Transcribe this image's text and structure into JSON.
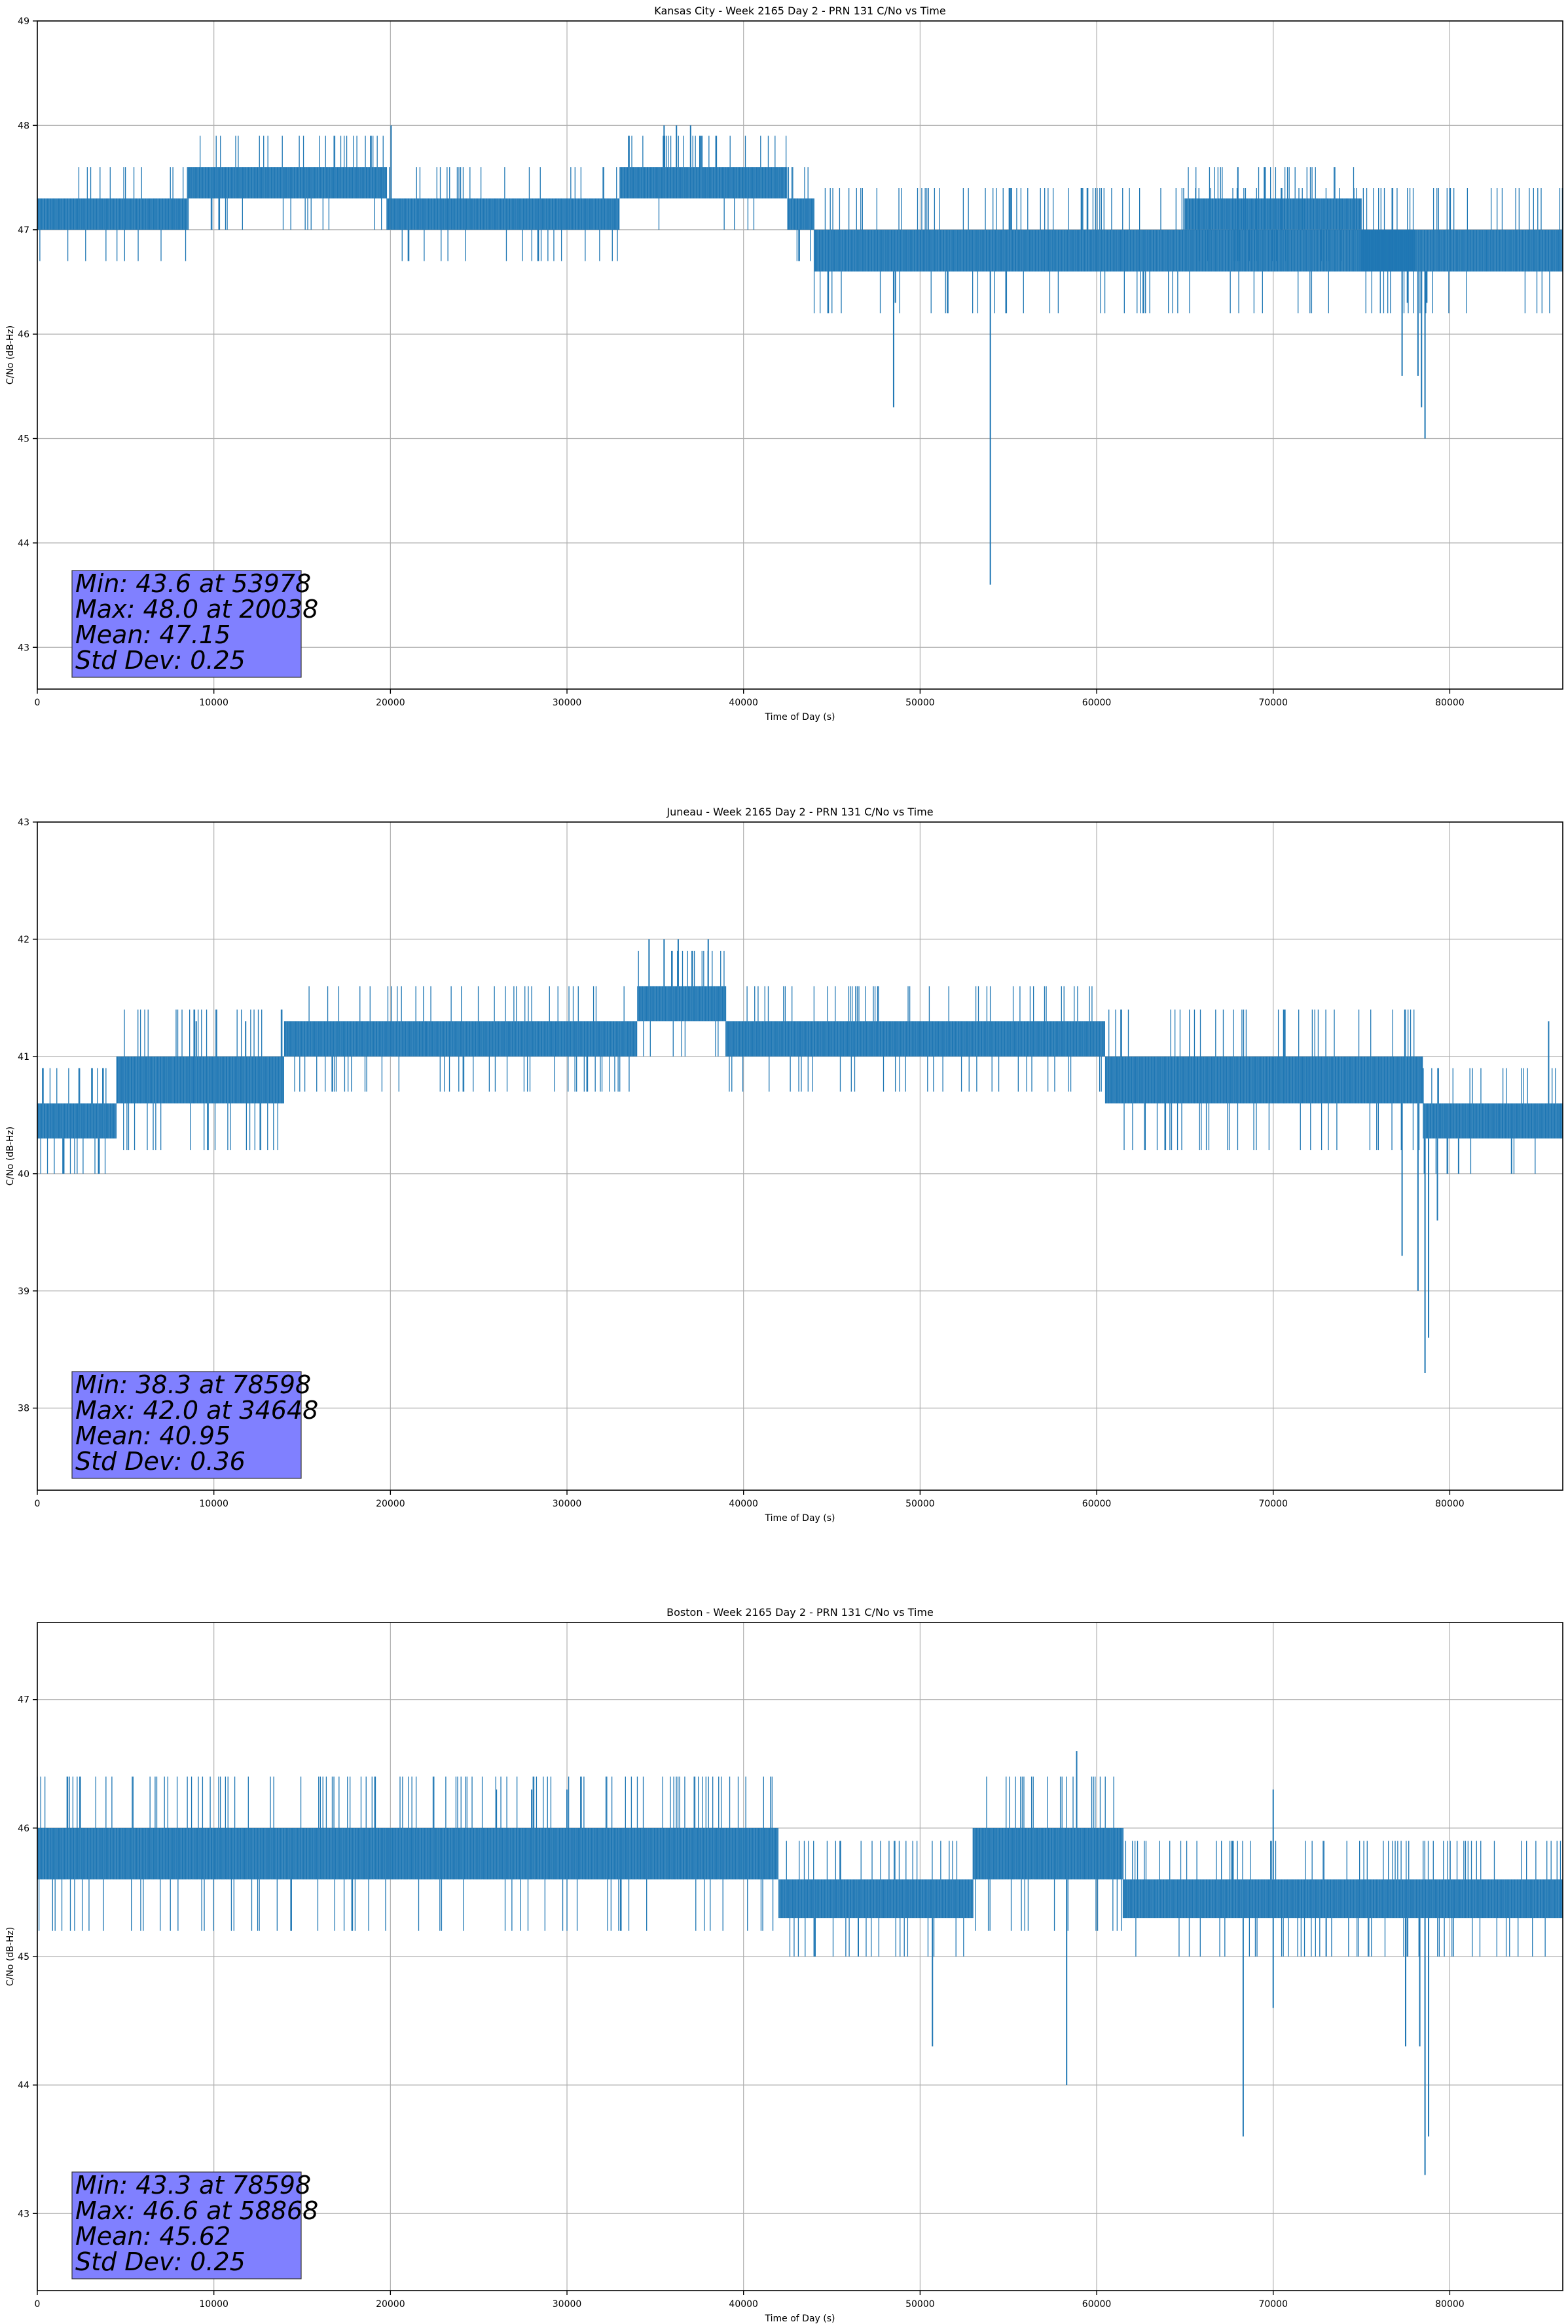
{
  "chart_data": [
    {
      "type": "line",
      "title": "Kansas City - Week 2165 Day 2 - PRN 131 C/No vs Time",
      "xlabel": "Time of Day (s)",
      "ylabel": "C/No (dB-Hz)",
      "xlim": [
        0,
        86400
      ],
      "ylim": [
        42.6,
        49.0
      ],
      "xticks": [
        0,
        10000,
        20000,
        30000,
        40000,
        50000,
        60000,
        70000,
        80000
      ],
      "yticks": [
        43,
        44,
        45,
        46,
        47,
        48,
        49
      ],
      "grid": true,
      "line_color": "#1f77b4",
      "stats_box_color": "#8080ff",
      "stats": [
        "Min: 43.6 at 53978",
        "Max: 48.0 at 20038",
        "Mean: 47.15",
        "Std Dev: 0.25"
      ],
      "bands": [
        {
          "x": [
            0,
            8500
          ],
          "range": [
            47.0,
            47.3
          ]
        },
        {
          "x": [
            8500,
            19800
          ],
          "range": [
            47.3,
            47.6
          ]
        },
        {
          "x": [
            19800,
            27000
          ],
          "range": [
            47.0,
            47.3
          ]
        },
        {
          "x": [
            27000,
            33000
          ],
          "range": [
            47.0,
            47.3
          ]
        },
        {
          "x": [
            33000,
            42500
          ],
          "range": [
            47.3,
            47.6
          ]
        },
        {
          "x": [
            42500,
            44000
          ],
          "range": [
            47.0,
            47.3
          ]
        },
        {
          "x": [
            44000,
            78000
          ],
          "range": [
            46.6,
            47.0
          ]
        },
        {
          "x": [
            65000,
            75000
          ],
          "range": [
            47.0,
            47.3
          ]
        },
        {
          "x": [
            75000,
            86400
          ],
          "range": [
            46.6,
            47.0
          ]
        }
      ],
      "spikes": [
        [
          20038,
          48.0
        ],
        [
          35500,
          48.0
        ],
        [
          36200,
          48.0
        ],
        [
          37000,
          48.0
        ],
        [
          68000,
          47.6
        ],
        [
          69500,
          47.6
        ],
        [
          48500,
          45.3
        ],
        [
          48600,
          46.3
        ],
        [
          53978,
          43.6
        ],
        [
          55000,
          46.6
        ],
        [
          77300,
          45.6
        ],
        [
          77600,
          46.3
        ],
        [
          78200,
          45.6
        ],
        [
          78400,
          45.3
        ],
        [
          78598,
          45.0
        ],
        [
          78700,
          46.3
        ]
      ]
    },
    {
      "type": "line",
      "title": "Juneau - Week 2165 Day 2 - PRN 131 C/No vs Time",
      "xlabel": "Time of Day (s)",
      "ylabel": "C/No (dB-Hz)",
      "xlim": [
        0,
        86400
      ],
      "ylim": [
        37.3,
        43.0
      ],
      "xticks": [
        0,
        10000,
        20000,
        30000,
        40000,
        50000,
        60000,
        70000,
        80000
      ],
      "yticks": [
        38,
        39,
        40,
        41,
        42,
        43
      ],
      "grid": true,
      "line_color": "#1f77b4",
      "stats_box_color": "#8080ff",
      "stats": [
        "Min: 38.3 at 78598",
        "Max: 42.0 at 34648",
        "Mean: 40.95",
        "Std Dev: 0.36"
      ],
      "bands": [
        {
          "x": [
            0,
            4500
          ],
          "range": [
            40.3,
            40.6
          ]
        },
        {
          "x": [
            4500,
            14000
          ],
          "range": [
            40.6,
            41.0
          ]
        },
        {
          "x": [
            14000,
            22000
          ],
          "range": [
            41.0,
            41.3
          ]
        },
        {
          "x": [
            22000,
            34000
          ],
          "range": [
            41.0,
            41.3
          ]
        },
        {
          "x": [
            34000,
            39000
          ],
          "range": [
            41.3,
            41.6
          ]
        },
        {
          "x": [
            39000,
            60500
          ],
          "range": [
            41.0,
            41.3
          ]
        },
        {
          "x": [
            60500,
            78500
          ],
          "range": [
            40.6,
            41.0
          ]
        },
        {
          "x": [
            78500,
            86400
          ],
          "range": [
            40.3,
            40.6
          ]
        }
      ],
      "spikes": [
        [
          34648,
          42.0
        ],
        [
          35500,
          42.0
        ],
        [
          36300,
          42.0
        ],
        [
          38000,
          42.0
        ],
        [
          9000,
          41.3
        ],
        [
          11800,
          41.3
        ],
        [
          1500,
          40.0
        ],
        [
          3500,
          40.0
        ],
        [
          77300,
          39.3
        ],
        [
          78200,
          39.0
        ],
        [
          78598,
          38.3
        ],
        [
          78800,
          38.6
        ],
        [
          79300,
          39.6
        ],
        [
          80500,
          40.0
        ],
        [
          83500,
          40.0
        ],
        [
          85600,
          41.3
        ]
      ]
    },
    {
      "type": "line",
      "title": "Boston - Week 2165 Day 2 - PRN 131 C/No vs Time",
      "xlabel": "Time of Day (s)",
      "ylabel": "C/No (dB-Hz)",
      "xlim": [
        0,
        86400
      ],
      "ylim": [
        42.4,
        47.6
      ],
      "xticks": [
        0,
        10000,
        20000,
        30000,
        40000,
        50000,
        60000,
        70000,
        80000
      ],
      "yticks": [
        43,
        44,
        45,
        46,
        47
      ],
      "grid": true,
      "line_color": "#1f77b4",
      "stats_box_color": "#8080ff",
      "stats": [
        "Min: 43.3 at 78598",
        "Max: 46.6 at 58868",
        "Mean: 45.62",
        "Std Dev: 0.25"
      ],
      "bands": [
        {
          "x": [
            0,
            42000
          ],
          "range": [
            45.6,
            46.0
          ]
        },
        {
          "x": [
            42000,
            53000
          ],
          "range": [
            45.3,
            45.6
          ]
        },
        {
          "x": [
            53000,
            61500
          ],
          "range": [
            45.6,
            46.0
          ]
        },
        {
          "x": [
            61500,
            86400
          ],
          "range": [
            45.3,
            45.6
          ]
        }
      ],
      "spikes": [
        [
          58868,
          46.6
        ],
        [
          26000,
          46.3
        ],
        [
          28000,
          46.3
        ],
        [
          30000,
          46.3
        ],
        [
          70000,
          46.3
        ],
        [
          50700,
          44.3
        ],
        [
          58300,
          44.0
        ],
        [
          68300,
          43.6
        ],
        [
          70000,
          44.6
        ],
        [
          77500,
          44.3
        ],
        [
          78300,
          44.3
        ],
        [
          78598,
          43.3
        ],
        [
          78800,
          43.6
        ],
        [
          44000,
          45.0
        ],
        [
          46500,
          45.0
        ],
        [
          73000,
          45.0
        ]
      ]
    }
  ]
}
